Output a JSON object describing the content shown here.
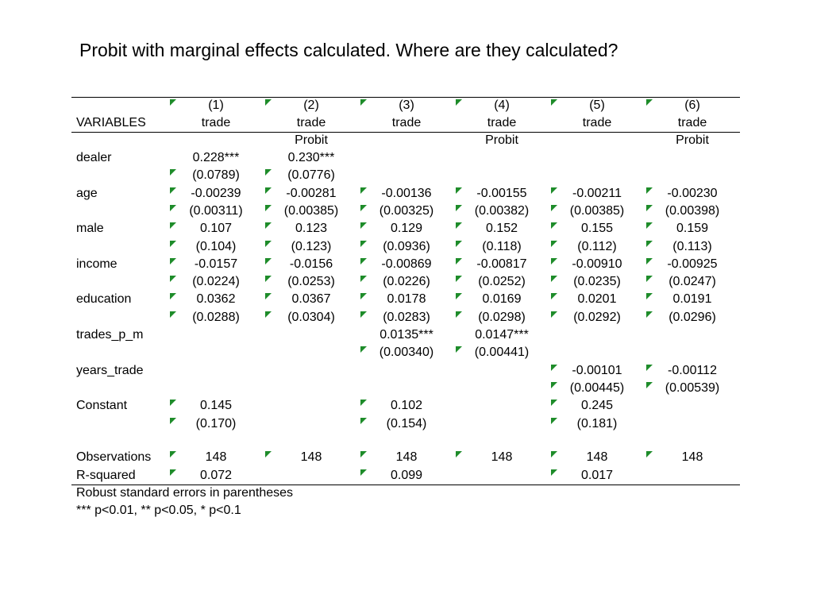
{
  "title": "Probit with marginal effects calculated. Where are they calculated?",
  "table": {
    "col_numbers": [
      "(1)",
      "(2)",
      "(3)",
      "(4)",
      "(5)",
      "(6)"
    ],
    "vars_header": "VARIABLES",
    "dep_var": [
      "trade",
      "trade",
      "trade",
      "trade",
      "trade",
      "trade"
    ],
    "model": [
      "",
      "Probit",
      "",
      "Probit",
      "",
      "Probit"
    ],
    "rows": [
      {
        "label": "dealer",
        "coef": [
          "0.228***",
          "0.230***",
          "",
          "",
          "",
          ""
        ],
        "se": [
          "(0.0789)",
          "(0.0776)",
          "",
          "",
          "",
          ""
        ]
      },
      {
        "label": "age",
        "coef": [
          "-0.00239",
          "-0.00281",
          "-0.00136",
          "-0.00155",
          "-0.00211",
          "-0.00230"
        ],
        "se": [
          "(0.00311)",
          "(0.00385)",
          "(0.00325)",
          "(0.00382)",
          "(0.00385)",
          "(0.00398)"
        ]
      },
      {
        "label": "male",
        "coef": [
          "0.107",
          "0.123",
          "0.129",
          "0.152",
          "0.155",
          "0.159"
        ],
        "se": [
          "(0.104)",
          "(0.123)",
          "(0.0936)",
          "(0.118)",
          "(0.112)",
          "(0.113)"
        ]
      },
      {
        "label": "income",
        "coef": [
          "-0.0157",
          "-0.0156",
          "-0.00869",
          "-0.00817",
          "-0.00910",
          "-0.00925"
        ],
        "se": [
          "(0.0224)",
          "(0.0253)",
          "(0.0226)",
          "(0.0252)",
          "(0.0235)",
          "(0.0247)"
        ]
      },
      {
        "label": "education",
        "coef": [
          "0.0362",
          "0.0367",
          "0.0178",
          "0.0169",
          "0.0201",
          "0.0191"
        ],
        "se": [
          "(0.0288)",
          "(0.0304)",
          "(0.0283)",
          "(0.0298)",
          "(0.0292)",
          "(0.0296)"
        ]
      },
      {
        "label": "trades_p_m",
        "coef": [
          "",
          "",
          "0.0135***",
          "0.0147***",
          "",
          ""
        ],
        "se": [
          "",
          "",
          "(0.00340)",
          "(0.00441)",
          "",
          ""
        ]
      },
      {
        "label": "years_trade",
        "coef": [
          "",
          "",
          "",
          "",
          "-0.00101",
          "-0.00112"
        ],
        "se": [
          "",
          "",
          "",
          "",
          "(0.00445)",
          "(0.00539)"
        ]
      },
      {
        "label": "Constant",
        "coef": [
          "0.145",
          "",
          "0.102",
          "",
          "0.245",
          ""
        ],
        "se": [
          "(0.170)",
          "",
          "(0.154)",
          "",
          "(0.181)",
          ""
        ]
      }
    ],
    "observations_label": "Observations",
    "observations": [
      "148",
      "148",
      "148",
      "148",
      "148",
      "148"
    ],
    "rsquared_label": "R-squared",
    "rsquared": [
      "0.072",
      "",
      "0.099",
      "",
      "0.017",
      ""
    ],
    "notes": [
      "Robust standard errors in parentheses",
      "*** p<0.01, ** p<0.05, * p<0.1"
    ]
  },
  "colors": {
    "error_indicator": "#1e8c2a",
    "rule": "#000000"
  }
}
